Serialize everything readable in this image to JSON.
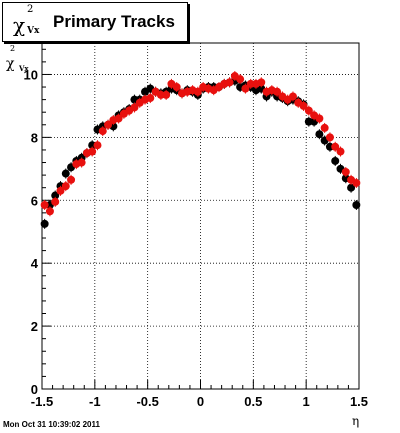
{
  "chart_data": {
    "type": "scatter",
    "title": "Primary Tracks",
    "title_symbol": "χ",
    "title_superscript": "2",
    "title_subscript": "Vx",
    "ylabel_symbol": "χ",
    "ylabel_superscript": "2",
    "ylabel_subscript": "Vx",
    "xlabel": "η",
    "xlim": [
      -1.5,
      1.5
    ],
    "ylim": [
      0,
      11
    ],
    "x_ticks": [
      -1.5,
      -1,
      -0.5,
      0,
      0.5,
      1,
      1.5
    ],
    "x_tick_labels": [
      "-1.5",
      "-1",
      "-0.5",
      "0",
      "0.5",
      "1",
      "1.5"
    ],
    "y_ticks": [
      0,
      2,
      4,
      6,
      8,
      10
    ],
    "y_tick_labels": [
      "0",
      "2",
      "4",
      "6",
      "8",
      "10"
    ],
    "grid": true,
    "series": [
      {
        "color": "#000000",
        "x": [
          -1.475,
          -1.425,
          -1.375,
          -1.325,
          -1.275,
          -1.225,
          -1.175,
          -1.125,
          -1.075,
          -1.025,
          -0.975,
          -0.925,
          -0.875,
          -0.825,
          -0.775,
          -0.725,
          -0.675,
          -0.625,
          -0.575,
          -0.525,
          -0.475,
          -0.425,
          -0.375,
          -0.325,
          -0.275,
          -0.225,
          -0.175,
          -0.125,
          -0.075,
          -0.025,
          0.025,
          0.075,
          0.125,
          0.175,
          0.225,
          0.275,
          0.325,
          0.375,
          0.425,
          0.475,
          0.525,
          0.575,
          0.625,
          0.675,
          0.725,
          0.775,
          0.825,
          0.875,
          0.925,
          0.975,
          1.025,
          1.075,
          1.125,
          1.175,
          1.225,
          1.275,
          1.325,
          1.375,
          1.425,
          1.475
        ],
        "y": [
          5.25,
          5.85,
          6.15,
          6.45,
          6.85,
          7.05,
          7.25,
          7.35,
          7.5,
          7.75,
          8.25,
          8.35,
          8.4,
          8.35,
          8.7,
          8.8,
          8.9,
          9.2,
          9.2,
          9.45,
          9.55,
          9.45,
          9.4,
          9.45,
          9.55,
          9.5,
          9.4,
          9.5,
          9.45,
          9.35,
          9.55,
          9.6,
          9.6,
          9.6,
          9.7,
          9.75,
          9.8,
          9.6,
          9.65,
          9.6,
          9.5,
          9.55,
          9.3,
          9.45,
          9.3,
          9.25,
          9.15,
          9.2,
          9.15,
          9.05,
          8.5,
          8.5,
          8.1,
          7.9,
          7.7,
          7.25,
          7.0,
          6.7,
          6.4,
          5.85
        ]
      },
      {
        "color": "#e8100e",
        "x": [
          -1.475,
          -1.425,
          -1.375,
          -1.325,
          -1.275,
          -1.225,
          -1.175,
          -1.125,
          -1.075,
          -1.025,
          -0.975,
          -0.925,
          -0.875,
          -0.825,
          -0.775,
          -0.725,
          -0.675,
          -0.625,
          -0.575,
          -0.525,
          -0.475,
          -0.425,
          -0.375,
          -0.325,
          -0.275,
          -0.225,
          -0.175,
          -0.125,
          -0.075,
          -0.025,
          0.025,
          0.075,
          0.125,
          0.175,
          0.225,
          0.275,
          0.325,
          0.375,
          0.425,
          0.475,
          0.525,
          0.575,
          0.625,
          0.675,
          0.725,
          0.775,
          0.825,
          0.875,
          0.925,
          0.975,
          1.025,
          1.075,
          1.125,
          1.175,
          1.225,
          1.275,
          1.325,
          1.375,
          1.425,
          1.475
        ],
        "y": [
          5.85,
          5.65,
          5.95,
          6.3,
          6.45,
          6.65,
          7.15,
          7.2,
          7.5,
          7.55,
          7.75,
          8.2,
          8.4,
          8.55,
          8.6,
          8.75,
          8.85,
          8.95,
          9.1,
          9.2,
          9.25,
          9.45,
          9.35,
          9.35,
          9.7,
          9.6,
          9.4,
          9.45,
          9.5,
          9.45,
          9.6,
          9.55,
          9.5,
          9.6,
          9.7,
          9.75,
          9.95,
          9.85,
          9.55,
          9.7,
          9.7,
          9.75,
          9.45,
          9.5,
          9.45,
          9.3,
          9.2,
          9.3,
          9.1,
          9.0,
          8.85,
          8.7,
          8.6,
          8.3,
          8.0,
          7.7,
          7.55,
          6.9,
          6.65,
          6.55
        ]
      }
    ]
  },
  "footer": {
    "timestamp": "Mon Oct 31 10:39:02 2011"
  }
}
